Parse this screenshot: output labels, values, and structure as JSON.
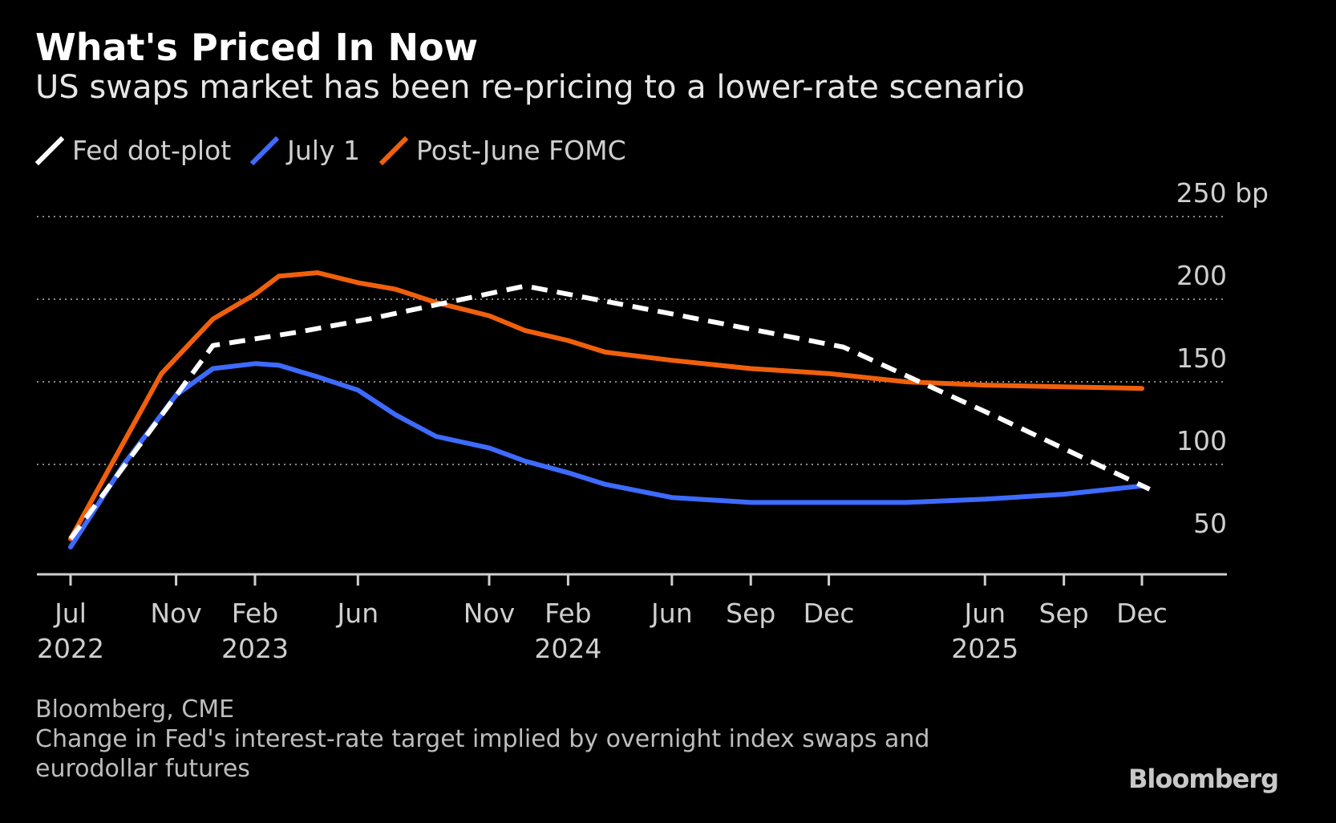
{
  "chart_data": {
    "type": "line",
    "title": "What's Priced In Now",
    "subtitle": "US swaps market has been re-pricing to a lower-rate scenario",
    "ylabel": "",
    "xlabel": "",
    "y_unit": "bp",
    "ylim": [
      40,
      250
    ],
    "y_ticks": [
      {
        "value": 250,
        "label": "250 bp"
      },
      {
        "value": 200,
        "label": "200"
      },
      {
        "value": 150,
        "label": "150"
      },
      {
        "value": 100,
        "label": "100"
      },
      {
        "value": 50,
        "label": "50"
      }
    ],
    "xlim": [
      "2022-06-17",
      "2026-01-31"
    ],
    "x_ticks": [
      {
        "date": "2022-07-01",
        "label": "Jul",
        "year": "2022"
      },
      {
        "date": "2022-11-01",
        "label": "Nov",
        "year": ""
      },
      {
        "date": "2023-02-01",
        "label": "Feb",
        "year": "2023"
      },
      {
        "date": "2023-06-01",
        "label": "Jun",
        "year": ""
      },
      {
        "date": "2023-11-01",
        "label": "Nov",
        "year": ""
      },
      {
        "date": "2024-02-01",
        "label": "Feb",
        "year": "2024"
      },
      {
        "date": "2024-06-01",
        "label": "Jun",
        "year": ""
      },
      {
        "date": "2024-09-01",
        "label": "Sep",
        "year": ""
      },
      {
        "date": "2024-12-01",
        "label": "Dec",
        "year": ""
      },
      {
        "date": "2025-06-01",
        "label": "Jun",
        "year": "2025"
      },
      {
        "date": "2025-09-01",
        "label": "Sep",
        "year": ""
      },
      {
        "date": "2025-12-01",
        "label": "Dec",
        "year": ""
      }
    ],
    "grid": "horizontal dotted",
    "legend_position": "top-left",
    "series": [
      {
        "name": "Fed dot-plot",
        "color": "#ffffff",
        "style": "dashed",
        "points": [
          {
            "x": "2022-07-01",
            "y": 55
          },
          {
            "x": "2022-12-14",
            "y": 172
          },
          {
            "x": "2023-03-22",
            "y": 180
          },
          {
            "x": "2023-06-14",
            "y": 188
          },
          {
            "x": "2023-12-13",
            "y": 208
          },
          {
            "x": "2024-06-12",
            "y": 190
          },
          {
            "x": "2024-12-18",
            "y": 171
          },
          {
            "x": "2025-06-18",
            "y": 128
          },
          {
            "x": "2025-12-10",
            "y": 85
          }
        ]
      },
      {
        "name": "July 1",
        "color": "#3e6bff",
        "style": "solid",
        "points": [
          {
            "x": "2022-07-01",
            "y": 50
          },
          {
            "x": "2022-09-01",
            "y": 100
          },
          {
            "x": "2022-11-01",
            "y": 142
          },
          {
            "x": "2022-12-14",
            "y": 158
          },
          {
            "x": "2023-02-01",
            "y": 161
          },
          {
            "x": "2023-03-01",
            "y": 160
          },
          {
            "x": "2023-04-15",
            "y": 153
          },
          {
            "x": "2023-06-01",
            "y": 145
          },
          {
            "x": "2023-07-15",
            "y": 130
          },
          {
            "x": "2023-08-31",
            "y": 117
          },
          {
            "x": "2023-11-01",
            "y": 110
          },
          {
            "x": "2023-12-13",
            "y": 102
          },
          {
            "x": "2024-02-01",
            "y": 95
          },
          {
            "x": "2024-03-15",
            "y": 88
          },
          {
            "x": "2024-06-01",
            "y": 80
          },
          {
            "x": "2024-09-01",
            "y": 77
          },
          {
            "x": "2024-12-01",
            "y": 77
          },
          {
            "x": "2025-03-01",
            "y": 77
          },
          {
            "x": "2025-06-01",
            "y": 79
          },
          {
            "x": "2025-09-01",
            "y": 82
          },
          {
            "x": "2025-12-01",
            "y": 87
          }
        ]
      },
      {
        "name": "Post-June FOMC",
        "color": "#f0600c",
        "style": "solid",
        "points": [
          {
            "x": "2022-07-01",
            "y": 55
          },
          {
            "x": "2022-10-15",
            "y": 155
          },
          {
            "x": "2022-12-14",
            "y": 188
          },
          {
            "x": "2023-02-01",
            "y": 203
          },
          {
            "x": "2023-03-01",
            "y": 214
          },
          {
            "x": "2023-04-15",
            "y": 216
          },
          {
            "x": "2023-06-01",
            "y": 210
          },
          {
            "x": "2023-07-15",
            "y": 206
          },
          {
            "x": "2023-08-31",
            "y": 198
          },
          {
            "x": "2023-11-01",
            "y": 190
          },
          {
            "x": "2023-12-13",
            "y": 181
          },
          {
            "x": "2024-02-01",
            "y": 175
          },
          {
            "x": "2024-03-15",
            "y": 168
          },
          {
            "x": "2024-06-01",
            "y": 163
          },
          {
            "x": "2024-09-01",
            "y": 158
          },
          {
            "x": "2024-12-01",
            "y": 155
          },
          {
            "x": "2025-03-01",
            "y": 150
          },
          {
            "x": "2025-06-01",
            "y": 148
          },
          {
            "x": "2025-09-01",
            "y": 147
          },
          {
            "x": "2025-12-01",
            "y": 146
          }
        ]
      }
    ]
  },
  "footer": {
    "source": "Bloomberg, CME",
    "note_line1": "Change in Fed's interest-rate target implied by overnight index swaps and",
    "note_line2": "eurodollar futures",
    "brand": "Bloomberg"
  }
}
